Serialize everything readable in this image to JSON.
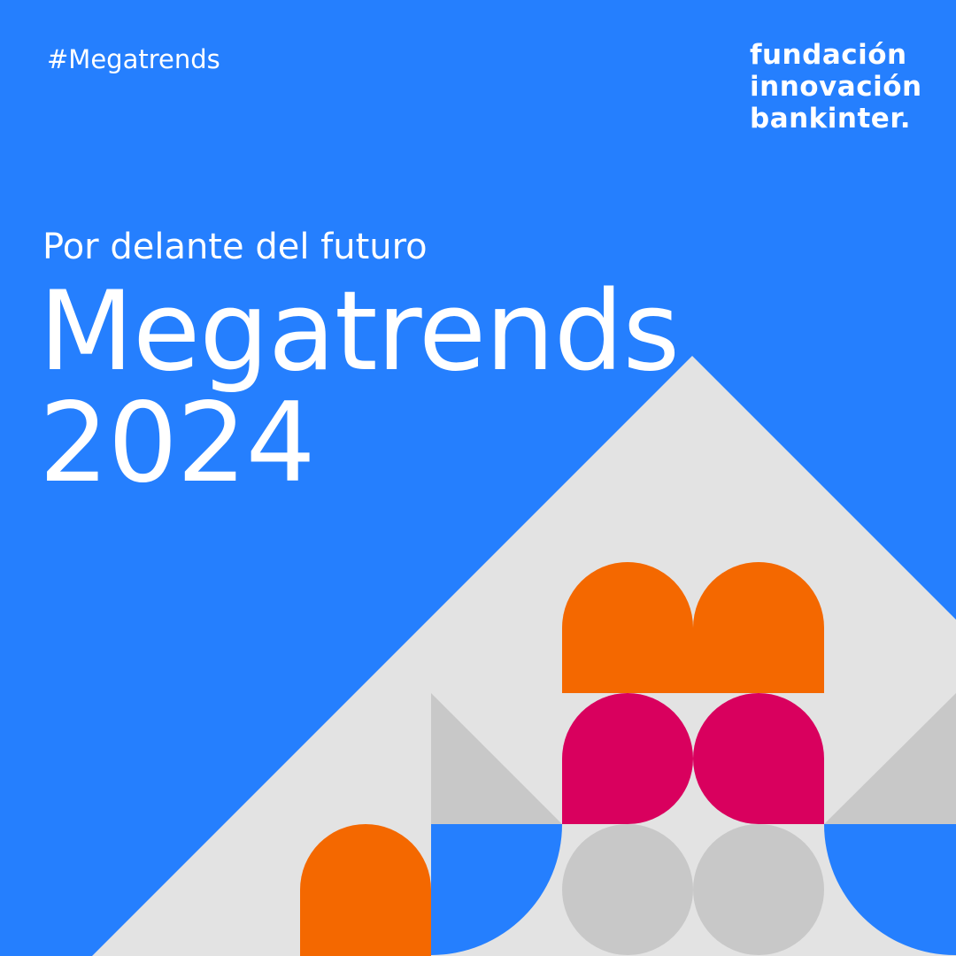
{
  "hashtag": "#Megatrends",
  "logo": {
    "line1": "fundación",
    "line2": "innovación",
    "line3": "bankinter."
  },
  "subtitle": "Por delante del futuro",
  "title": {
    "line1": "Megatrends",
    "line2": "2024"
  },
  "colors": {
    "background": "#257ffe",
    "triangle": "#e3e3e3",
    "orange": "#f46800",
    "magenta": "#d9005e",
    "gray": "#c8c8c8",
    "text": "#ffffff"
  }
}
